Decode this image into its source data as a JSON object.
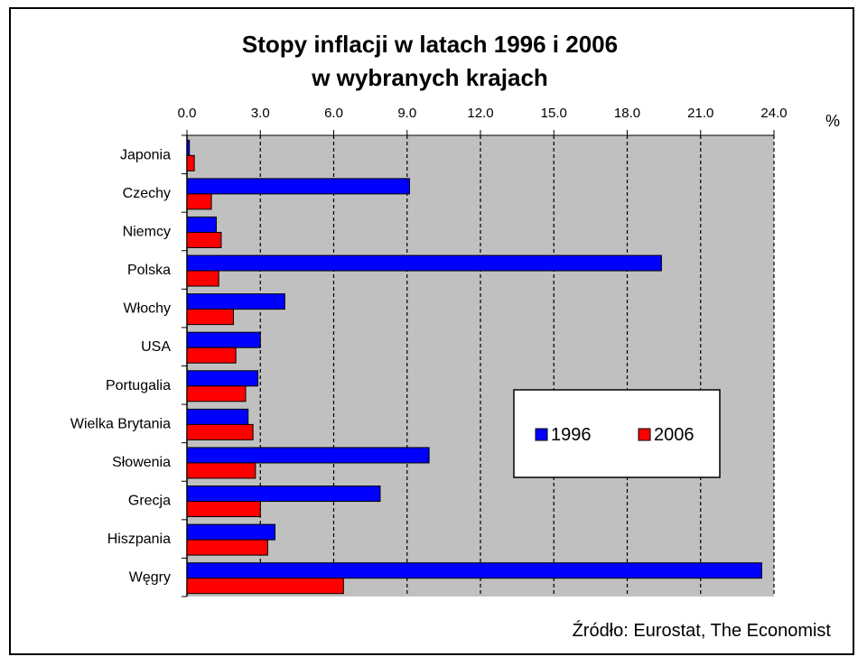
{
  "chart_data": {
    "type": "bar",
    "orientation": "horizontal",
    "title_line1": "Stopy inflacji w latach 1996 i 2006",
    "title_line2": "w wybranych krajach",
    "unit": "%",
    "xlim": [
      0,
      24
    ],
    "x_ticks": [
      "0.0",
      "3.0",
      "6.0",
      "9.0",
      "12.0",
      "15.0",
      "18.0",
      "21.0",
      "24.0"
    ],
    "categories": [
      "Japonia",
      "Czechy",
      "Niemcy",
      "Polska",
      "Włochy",
      "USA",
      "Portugalia",
      "Wielka Brytania",
      "Słowenia",
      "Grecja",
      "Hiszpania",
      "Węgry"
    ],
    "series": [
      {
        "name": "1996",
        "color": "#0000ff",
        "values": [
          0.1,
          9.1,
          1.2,
          19.4,
          4.0,
          3.0,
          2.9,
          2.5,
          9.9,
          7.9,
          3.6,
          23.5
        ]
      },
      {
        "name": "2006",
        "color": "#ff0000",
        "values": [
          0.3,
          1.0,
          1.4,
          1.3,
          1.9,
          2.0,
          2.4,
          2.7,
          2.8,
          3.0,
          3.3,
          6.4
        ]
      }
    ],
    "grid": "vertical dashed",
    "legend_position": "lower-right",
    "plot_background": "#c0c0c0",
    "source": "Źródło: Eurostat, The Economist"
  }
}
